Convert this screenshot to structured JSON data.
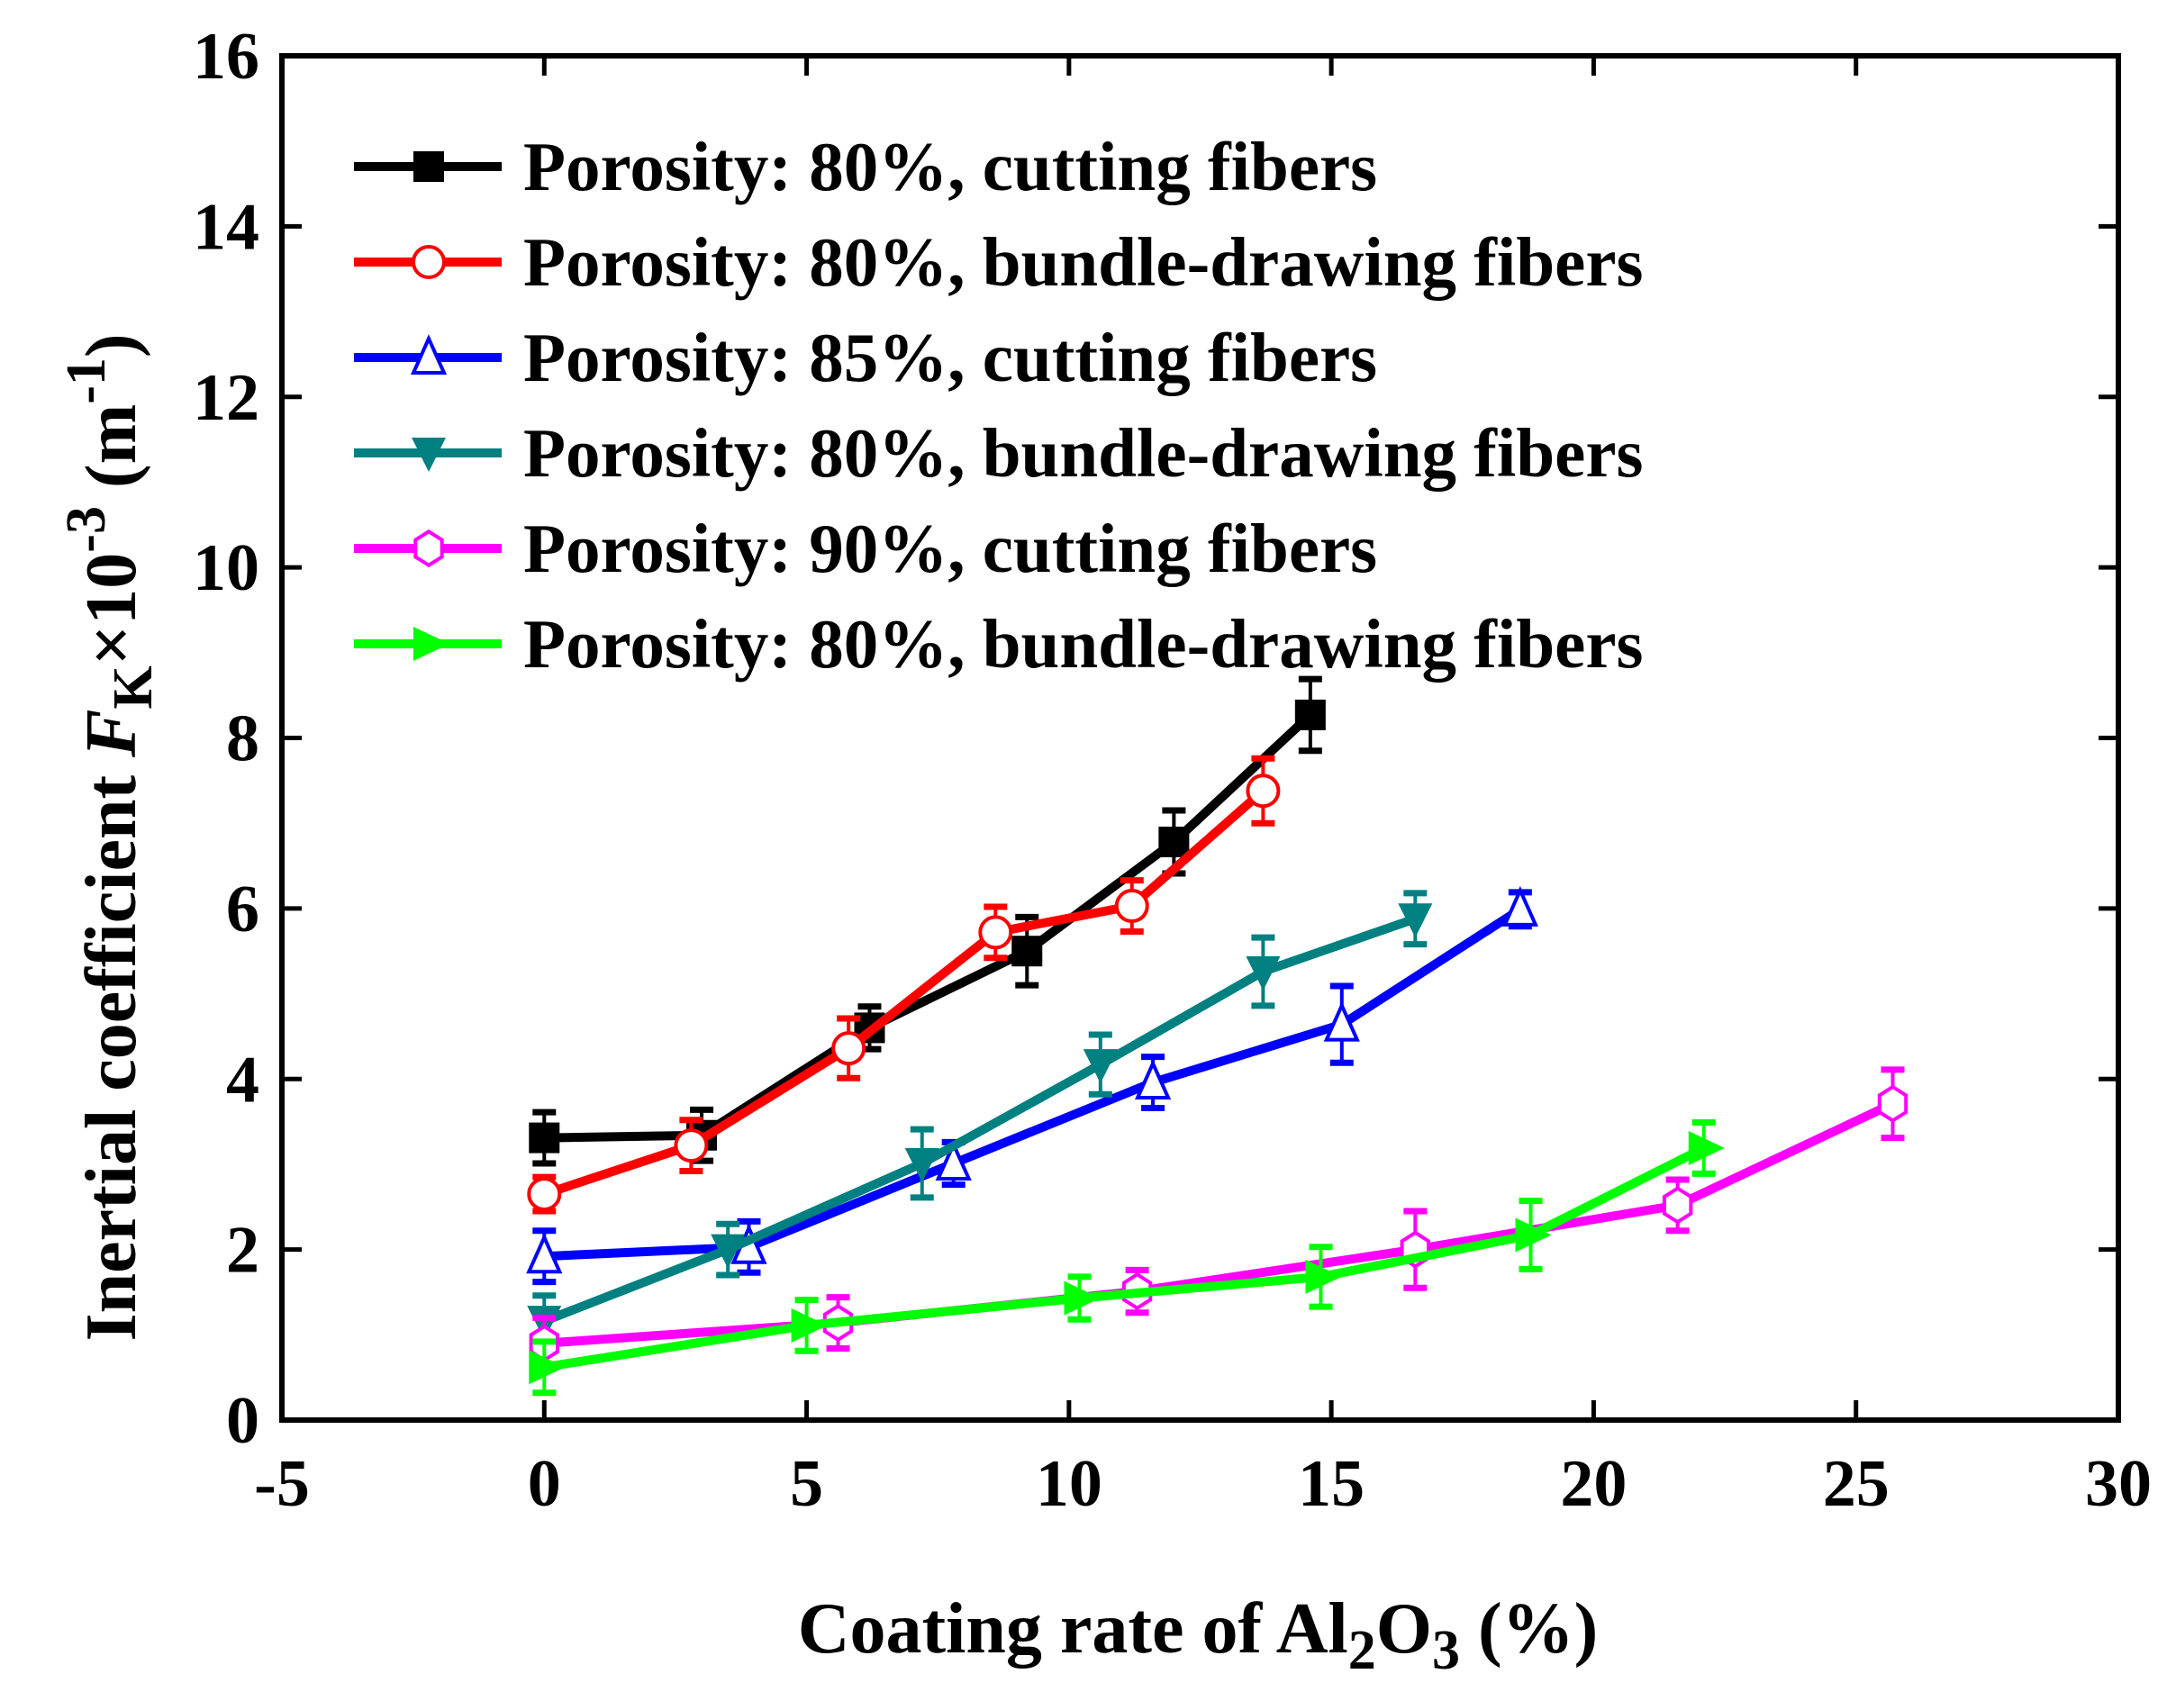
{
  "chart_data": {
    "type": "line",
    "title": "",
    "xlabel": {
      "main": "Coating rate of Al",
      "sub1": "2",
      "mid": "O",
      "sub2": "3",
      "tail": " (%)"
    },
    "ylabel": {
      "main": "Inertial coefficient ",
      "F": "F",
      "sub": "K",
      "times": "×10",
      "sup1": "-3",
      "unit": " (m",
      "sup2": "-1",
      "close": ")"
    },
    "xlim": [
      -5,
      30
    ],
    "ylim": [
      0,
      16
    ],
    "xticks": [
      -5,
      0,
      5,
      10,
      15,
      20,
      25,
      30
    ],
    "yticks": [
      0,
      2,
      4,
      6,
      8,
      10,
      12,
      14,
      16
    ],
    "xtick_labels": [
      "-5",
      "0",
      "5",
      "10",
      "15",
      "20",
      "25",
      "30"
    ],
    "ytick_labels": [
      "0",
      "2",
      "4",
      "6",
      "8",
      "10",
      "12",
      "14",
      "16"
    ],
    "grid": false,
    "legend_position": "top-left",
    "series": [
      {
        "name": "Porosity: 80%, cutting fibers",
        "color": "#000000",
        "marker": "square-filled",
        "x": [
          0,
          3.0,
          6.2,
          9.2,
          12.0,
          14.6
        ],
        "y": [
          3.31,
          3.34,
          4.6,
          5.5,
          6.78,
          8.27
        ],
        "err": [
          0.3,
          0.3,
          0.25,
          0.4,
          0.37,
          0.42
        ]
      },
      {
        "name": "Porosity: 80%, bundle-drawing fibers",
        "color": "#ff0000",
        "marker": "circle-open",
        "x": [
          0,
          2.8,
          5.8,
          8.6,
          11.2,
          13.7
        ],
        "y": [
          2.65,
          3.22,
          4.36,
          5.72,
          6.03,
          7.38
        ],
        "err": [
          0.2,
          0.3,
          0.35,
          0.3,
          0.3,
          0.38
        ]
      },
      {
        "name": "Porosity: 85%, cutting fibers",
        "color": "#0000ff",
        "marker": "triangle-up-open",
        "x": [
          0,
          3.9,
          7.8,
          11.6,
          15.2,
          18.6
        ],
        "y": [
          1.92,
          2.03,
          3.01,
          3.96,
          4.64,
          5.99
        ],
        "err": [
          0.3,
          0.3,
          0.25,
          0.3,
          0.45,
          0.2
        ]
      },
      {
        "name": "Porosity: 80%, bundle-drawing fibers",
        "color": "#008080",
        "marker": "triangle-down-filled",
        "x": [
          0,
          3.5,
          7.2,
          10.6,
          13.7,
          16.6
        ],
        "y": [
          1.16,
          2.0,
          3.01,
          4.17,
          5.26,
          5.88
        ],
        "err": [
          0.3,
          0.3,
          0.4,
          0.35,
          0.4,
          0.3
        ]
      },
      {
        "name": "Porosity: 90%, cutting fibers",
        "color": "#ff00ff",
        "marker": "hexagon-open",
        "x": [
          0,
          5.6,
          11.3,
          16.6,
          21.6,
          25.7
        ],
        "y": [
          0.9,
          1.14,
          1.51,
          2.0,
          2.52,
          3.71
        ],
        "err": [
          0.3,
          0.3,
          0.25,
          0.45,
          0.3,
          0.4
        ]
      },
      {
        "name": "Porosity: 80%, bundle-drawing fibers",
        "color": "#00ff00",
        "marker": "triangle-right-filled",
        "x": [
          0,
          5.0,
          10.2,
          14.8,
          18.8,
          22.1
        ],
        "y": [
          0.62,
          1.11,
          1.43,
          1.68,
          2.17,
          3.19
        ],
        "err": [
          0.3,
          0.3,
          0.25,
          0.35,
          0.4,
          0.3
        ]
      }
    ]
  }
}
